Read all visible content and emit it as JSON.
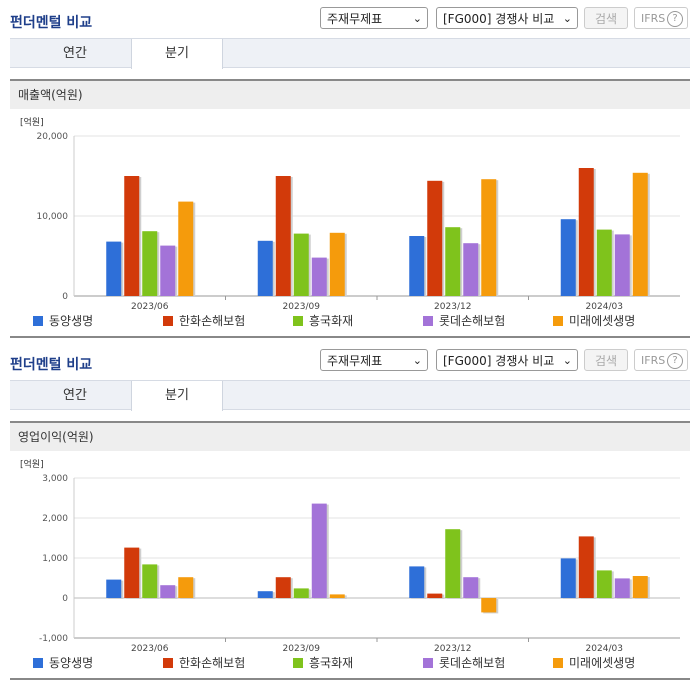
{
  "colors": {
    "series": [
      "#2e6fd8",
      "#d23a0a",
      "#7fc31c",
      "#a373d8",
      "#f59b0c"
    ],
    "title": "#1f3f8a",
    "axis": "#999999"
  },
  "panels": [
    {
      "title": "펀더멘털 비교",
      "select1": "주재무제표",
      "select2": "[FG000] 경쟁사 비교",
      "search_label": "검색",
      "ifrs_label": "IFRS",
      "help_icon": "question-circle-icon",
      "tabs": [
        "연간",
        "분기"
      ],
      "active_tab": 1,
      "subheader": "매출액(억원)"
    },
    {
      "title": "펀더멘털 비교",
      "select1": "주재무제표",
      "select2": "[FG000] 경쟁사 비교",
      "search_label": "검색",
      "ifrs_label": "IFRS",
      "help_icon": "question-circle-icon",
      "tabs": [
        "연간",
        "분기"
      ],
      "active_tab": 1,
      "subheader": "영업이익(억원)"
    }
  ],
  "chart_data": [
    {
      "type": "bar",
      "unit_label": "[억원]",
      "categories": [
        "2023/06",
        "2023/09",
        "2023/12",
        "2024/03"
      ],
      "ylim": [
        0,
        20000
      ],
      "yticks": [
        0,
        10000,
        20000
      ],
      "ytick_labels": [
        "0",
        "10,000",
        "20,000"
      ],
      "series": [
        {
          "name": "동양생명",
          "values": [
            6800,
            6900,
            7500,
            9600
          ]
        },
        {
          "name": "한화손해보험",
          "values": [
            15000,
            15000,
            14400,
            16000
          ]
        },
        {
          "name": "흥국화재",
          "values": [
            8100,
            7800,
            8600,
            8300
          ]
        },
        {
          "name": "롯데손해보험",
          "values": [
            6300,
            4800,
            6600,
            7700
          ]
        },
        {
          "name": "미래에셋생명",
          "values": [
            11800,
            7900,
            14600,
            15400
          ]
        }
      ],
      "grid": true,
      "legend": "bottom"
    },
    {
      "type": "bar",
      "unit_label": "[억원]",
      "categories": [
        "2023/06",
        "2023/09",
        "2023/12",
        "2024/03"
      ],
      "ylim": [
        -1000,
        3000
      ],
      "yticks": [
        -1000,
        0,
        1000,
        2000,
        3000
      ],
      "ytick_labels": [
        "-1,000",
        "0",
        "1,000",
        "2,000",
        "3,000"
      ],
      "series": [
        {
          "name": "동양생명",
          "values": [
            460,
            170,
            790,
            990
          ]
        },
        {
          "name": "한화손해보험",
          "values": [
            1260,
            520,
            110,
            1540
          ]
        },
        {
          "name": "흥국화재",
          "values": [
            840,
            240,
            1720,
            690
          ]
        },
        {
          "name": "롯데손해보험",
          "values": [
            320,
            2360,
            520,
            490
          ]
        },
        {
          "name": "미래에셋생명",
          "values": [
            520,
            90,
            -360,
            550
          ]
        }
      ],
      "grid": true,
      "legend": "bottom"
    }
  ]
}
